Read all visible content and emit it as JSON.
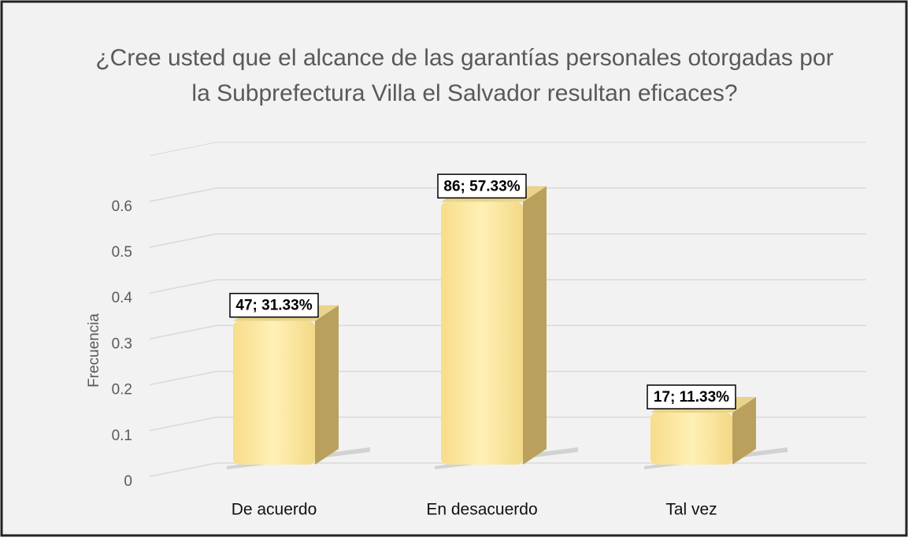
{
  "chart_data": {
    "type": "bar3d",
    "title": [
      "¿Cree usted que el alcance de las garantías personales otorgadas por",
      "la Subprefectura  Villa el Salvador resultan eficaces?"
    ],
    "y_label": "Frecuencia",
    "categories": [
      "De acuerdo",
      "En desacuerdo",
      "Tal vez"
    ],
    "values": [
      0.3133,
      0.5733,
      0.1133
    ],
    "value_labels": [
      "47; 31.33%",
      "86; 57.33%",
      "17; 11.33%"
    ],
    "color": "#fde59a",
    "ylim": [
      0,
      0.7
    ],
    "yticks": [
      0,
      0.1,
      0.2,
      0.3,
      0.4,
      0.5,
      0.6
    ],
    "grid": true
  }
}
